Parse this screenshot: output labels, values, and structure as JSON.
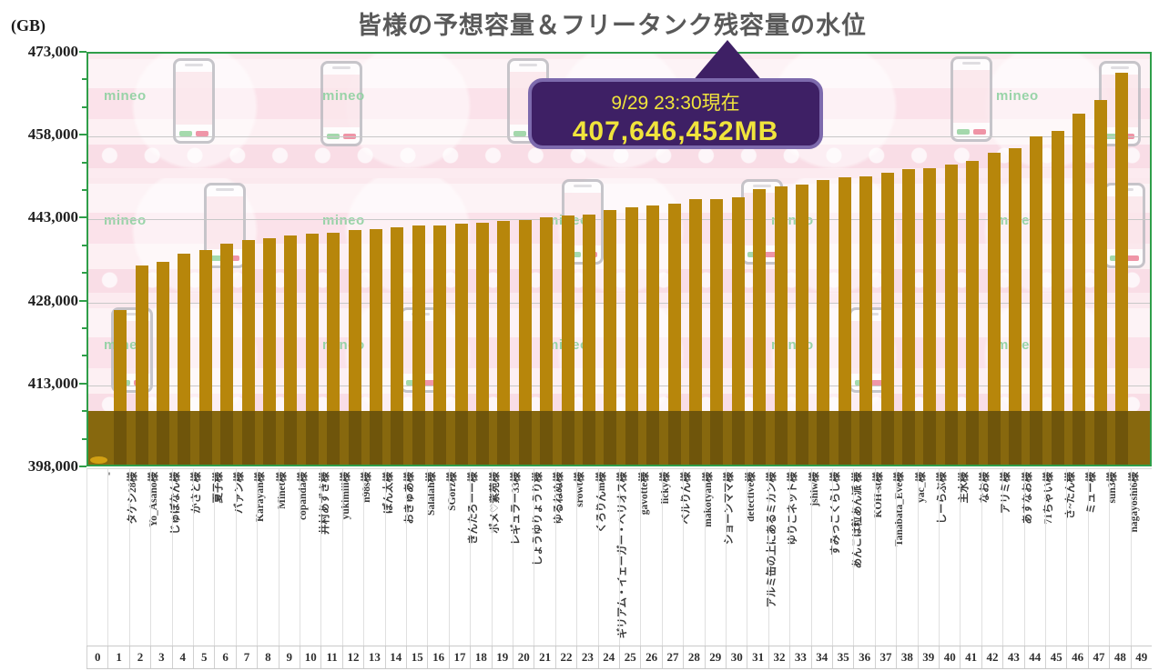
{
  "title": "皆様の予想容量＆フリータンク残容量の水位",
  "y_axis": {
    "unit_label": "(GB)",
    "tick_labels": [
      "473,000",
      "458,000",
      "443,000",
      "428,000",
      "413,000",
      "398,000"
    ],
    "tick_values": [
      473000,
      458000,
      443000,
      428000,
      413000,
      398000
    ],
    "minor_tick_step": 5000
  },
  "x_axis": {
    "indices": [
      0,
      1,
      2,
      3,
      4,
      5,
      6,
      7,
      8,
      9,
      10,
      11,
      12,
      13,
      14,
      15,
      16,
      17,
      18,
      19,
      20,
      21,
      22,
      23,
      24,
      25,
      26,
      27,
      28,
      29,
      30,
      31,
      32,
      33,
      34,
      35,
      36,
      37,
      38,
      39,
      40,
      41,
      42,
      43,
      44,
      45,
      46,
      47,
      48,
      49
    ]
  },
  "callout": {
    "line1": "9/29 23:30現在",
    "line2": "407,646,452MB"
  },
  "watermark": "mineo",
  "colors": {
    "bar": "#b7860b",
    "level_band": "#87680e",
    "level_band_on_bar": "#6f550b",
    "plot_border": "#2f9e49",
    "callout_bg": "#3e2065",
    "callout_border": "#7d6aad",
    "callout_text": "#f0e43c",
    "title_text": "#595959"
  },
  "chart_data": {
    "type": "bar",
    "title": "皆様の予想容量＆フリータンク残容量の水位",
    "xlabel": "",
    "ylabel": "(GB)",
    "ylim": [
      398000,
      473000
    ],
    "grid": "horizontal",
    "legend": "none",
    "categories": [
      "-",
      "タケシ28様",
      "Yo_Asano様",
      "じゅぼなん様",
      "かさと様",
      "夏子様",
      "バァン様",
      "Karayan様",
      "Minet様",
      "copanda様",
      "井村あずき様",
      "yukimiii様",
      "n98s様",
      "ぽん太様",
      "おきゅあ様",
      "Salalah様",
      "SGorz様",
      "きんたろーー様",
      "ポメ♡紫苑様",
      "レギュラー33様",
      "しょうゆりょうり様",
      "ゆるねぬ様",
      "srowt様",
      "くろりんm様",
      "ギリアム・イェーガー・ヘリオス様",
      "gavotte様",
      "licky様",
      "ベルりん様",
      "makotyan様",
      "ショーンママ様",
      "detective様",
      "アルミ缶の上にあるミカン様",
      "ゆりこネット様",
      "jshiw様",
      "すみっこくらし様",
      "あんこは粒あん派 様",
      "KOH-st様",
      "Tanabata_Eve様",
      "yac_様",
      "しーらぶ様",
      "主水様",
      "なお様",
      "アリミ様",
      "あすなお様",
      "71ちゃい様",
      "さ~たん様",
      "ミュー様",
      "sun3様",
      "nagayoshi6様",
      ""
    ],
    "values": [
      null,
      425900,
      434100,
      434700,
      436100,
      436900,
      438000,
      438700,
      439000,
      439400,
      439800,
      440000,
      440400,
      440600,
      441000,
      441200,
      441300,
      441600,
      441800,
      442000,
      442200,
      442700,
      443000,
      443200,
      444000,
      444500,
      444900,
      445200,
      446000,
      446100,
      446300,
      447900,
      448300,
      448700,
      449500,
      449900,
      450100,
      450800,
      451400,
      451700,
      452200,
      452900,
      454400,
      455200,
      457300,
      458300,
      461500,
      463900,
      468900,
      null
    ],
    "current_level_gb": 407646,
    "current_level_label": "407,646,452MB",
    "as_of": "9/29 23:30現在"
  }
}
